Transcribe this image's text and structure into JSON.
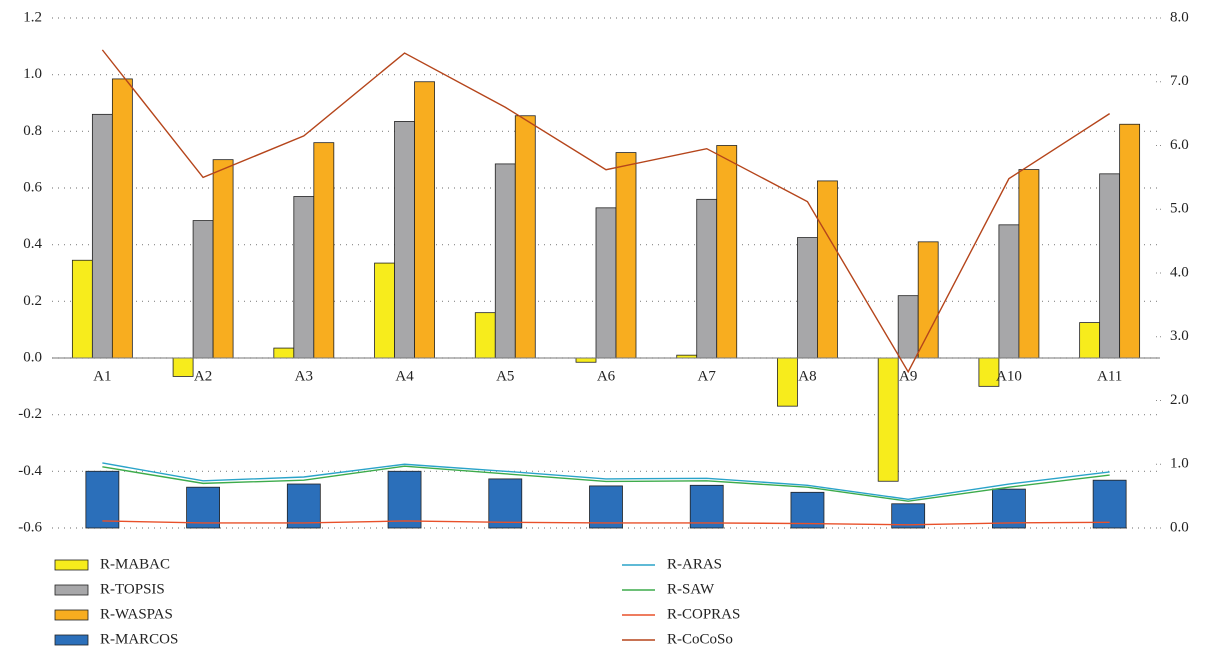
{
  "chart_data": {
    "type": "bar",
    "categories": [
      "A1",
      "A2",
      "A3",
      "A4",
      "A5",
      "A6",
      "A7",
      "A8",
      "A9",
      "A10",
      "A11"
    ],
    "ylim": [
      -0.6,
      1.2
    ],
    "yticks": [
      -0.6,
      -0.4,
      -0.2,
      {
        "value": 0,
        "label": "0.0"
      },
      0.2,
      0.4,
      0.6,
      0.8,
      {
        "value": 1,
        "label": "1.0"
      },
      1.2
    ],
    "y2lim": [
      0,
      8
    ],
    "y2ticks": [
      {
        "value": 0,
        "label": "0.0"
      },
      {
        "value": 1,
        "label": "1.0"
      },
      {
        "value": 2,
        "label": "2.0"
      },
      {
        "value": 3,
        "label": "3.0"
      },
      {
        "value": 4,
        "label": "4.0"
      },
      {
        "value": 5,
        "label": "5.0"
      },
      {
        "value": 6,
        "label": "6.0"
      },
      {
        "value": 7,
        "label": "7.0"
      },
      {
        "value": 8,
        "label": "8.0"
      }
    ],
    "grid": true,
    "series": [
      {
        "name": "R-MABAC",
        "type": "bar",
        "color": "#f7ec1c",
        "values": [
          0.345,
          -0.065,
          0.035,
          0.335,
          0.16,
          -0.015,
          0.01,
          -0.17,
          -0.435,
          -0.1,
          0.125
        ]
      },
      {
        "name": "R-TOPSIS",
        "type": "bar",
        "color": "#a7a7a9",
        "values": [
          0.86,
          0.485,
          0.57,
          0.835,
          0.685,
          0.53,
          0.56,
          0.425,
          0.22,
          0.47,
          0.65
        ]
      },
      {
        "name": "R-WASPAS",
        "type": "bar",
        "color": "#f8ad1f",
        "values": [
          0.985,
          0.7,
          0.76,
          0.975,
          0.855,
          0.725,
          0.75,
          0.625,
          0.41,
          0.665,
          0.825
        ]
      },
      {
        "name": "R-MARCOS",
        "type": "bar",
        "axis": "y2",
        "color": "#2b6fba",
        "values": [
          0.89,
          0.64,
          0.69,
          0.89,
          0.77,
          0.66,
          0.67,
          0.56,
          0.38,
          0.61,
          0.75
        ]
      },
      {
        "name": "R-ARAS",
        "type": "line",
        "axis": "y2",
        "color": "#2aa3c9",
        "values": [
          1.02,
          0.74,
          0.8,
          1.0,
          0.89,
          0.77,
          0.78,
          0.67,
          0.45,
          0.69,
          0.88
        ]
      },
      {
        "name": "R-SAW",
        "type": "line",
        "axis": "y2",
        "color": "#3dab4b",
        "values": [
          0.96,
          0.7,
          0.75,
          0.97,
          0.85,
          0.73,
          0.74,
          0.64,
          0.42,
          0.64,
          0.83
        ]
      },
      {
        "name": "R-COPRAS",
        "type": "line",
        "axis": "y2",
        "color": "#e8502a",
        "values": [
          0.11,
          0.08,
          0.08,
          0.11,
          0.09,
          0.08,
          0.08,
          0.07,
          0.05,
          0.08,
          0.09
        ]
      },
      {
        "name": "R-CoCoSo",
        "type": "line",
        "axis": "y2",
        "color": "#b5451b",
        "values": [
          7.5,
          5.5,
          6.15,
          7.45,
          6.6,
          5.62,
          5.95,
          5.12,
          2.45,
          5.48,
          6.5
        ]
      }
    ]
  }
}
